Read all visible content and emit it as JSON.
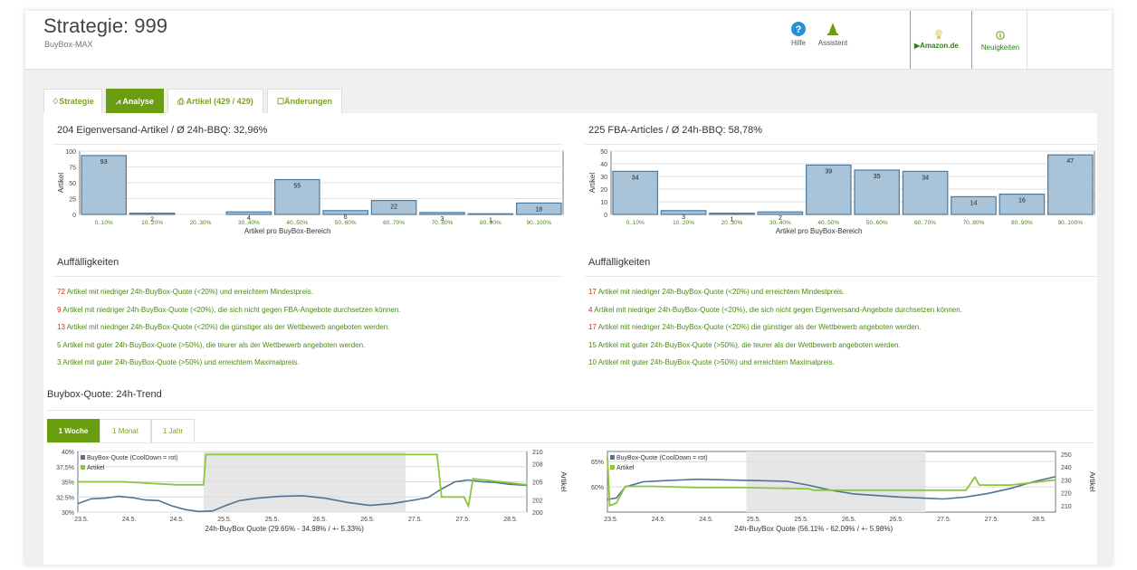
{
  "header": {
    "title": "Strategie: 999",
    "subtitle": "BuyBox-MAX",
    "help_label": "Hilfe",
    "assistant_label": "Assistent",
    "amazon_label": "Amazon.de",
    "news_label": "Neuigkeiten"
  },
  "tabs": [
    {
      "label": "Strategie",
      "active": false
    },
    {
      "label": "Analyse",
      "active": true
    },
    {
      "label": "Artikel (429 / 429)",
      "active": false
    },
    {
      "label": "Änderungen",
      "active": false
    }
  ],
  "left_panel": {
    "title": "204 Eigenversand-Artikel / Ø 24h-BBQ: 32,96%",
    "notes_title": "Auffälligkeiten",
    "notes": [
      {
        "num": "72",
        "text": " Artikel mit niedriger 24h-BuyBox-Quote (<20%) und erreichtem Mindestpreis.",
        "num_red": true
      },
      {
        "num": "9",
        "text": " Artikel mit niedriger 24h-BuyBox-Quote (<20%), die sich nicht gegen FBA-Angebote durchsetzen können.",
        "num_red": true
      },
      {
        "num": "13",
        "text": " Artikel mit niedriger 24h-BuyBox-Quote (<20%) die günstiger als der Wettbewerb angeboten werden.",
        "num_red": true
      },
      {
        "num": "5",
        "text": " Artikel mit guter 24h-BuyBox-Quote (>50%), die teurer als der Wettbewerb angeboten werden.",
        "num_red": false
      },
      {
        "num": "3",
        "text": " Artikel mit guter 24h-BuyBox-Quote (>50%) und erreichtem Maximalpreis.",
        "num_red": false
      }
    ]
  },
  "right_panel": {
    "title": "225 FBA-Articles / Ø 24h-BBQ: 58,78%",
    "notes_title": "Auffälligkeiten",
    "notes": [
      {
        "num": "17",
        "text": " Artikel mit niedriger 24h-BuyBox-Quote (<20%) und erreichtem Mindestpreis.",
        "num_red": true
      },
      {
        "num": "4",
        "text": " Artikel mit niedriger 24h-BuyBox-Quote (<20%), die sich nicht gegen Eigenversand-Angebote durchsetzen können.",
        "num_red": true
      },
      {
        "num": "17",
        "text": " Artikel mit niedriger 24h-BuyBox-Quote (<20%) die günstiger als der Wettbewerb angeboten werden.",
        "num_red": true
      },
      {
        "num": "15",
        "text": " Artikel mit guter 24h-BuyBox-Quote (>50%), die teurer als der Wettbewerb angeboten werden.",
        "num_red": false
      },
      {
        "num": "10",
        "text": " Artikel mit guter 24h-BuyBox-Quote (>50%) und erreichtem Maximalpreis.",
        "num_red": false
      }
    ]
  },
  "trend": {
    "title": "Buybox-Quote: 24h-Trend",
    "tabs": [
      {
        "label": "1 Woche",
        "active": true
      },
      {
        "label": "1 Monat",
        "active": false
      },
      {
        "label": "1 Jahr",
        "active": false
      }
    ]
  },
  "colors": {
    "accent": "#6a9e0f",
    "bar": "#a9c4d8",
    "bar_border": "#4e7a9e",
    "line_blue": "#4f7390",
    "line_green": "#8cc63f",
    "red": "#d62b1e"
  },
  "chart_data": [
    {
      "type": "bar",
      "ylabel": "Artikel",
      "xlabel": "Artikel pro BuyBox-Bereich",
      "categories": [
        "0..10%",
        "10..20%",
        "20..30%",
        "30..40%",
        "40..50%",
        "50..60%",
        "60..70%",
        "70..80%",
        "80..90%",
        "90..100%"
      ],
      "values": [
        93,
        2,
        null,
        4,
        55,
        6,
        22,
        3,
        1,
        18
      ],
      "ylim": [
        0,
        100
      ],
      "yticks": [
        0,
        25,
        50,
        75,
        100
      ]
    },
    {
      "type": "bar",
      "ylabel": "Artikel",
      "xlabel": "Artikel pro BuyBox-Bereich",
      "categories": [
        "0..10%",
        "10..20%",
        "20..30%",
        "30..40%",
        "40..50%",
        "50..60%",
        "60..70%",
        "70..80%",
        "80..90%",
        "90..100%"
      ],
      "values": [
        34,
        3,
        1,
        2,
        39,
        35,
        34,
        14,
        16,
        47
      ],
      "ylim": [
        0,
        50
      ],
      "yticks": [
        0,
        10,
        20,
        30,
        40,
        50
      ]
    },
    {
      "type": "line",
      "xlabel": "24h-BuyBox Quote (29.65% - 34.98% / +- 5.33%)",
      "ylabel_right": "Artikel",
      "x_ticks": [
        "23.5.",
        "24.5.",
        "24.5.",
        "25.5.",
        "25.5.",
        "26.5.",
        "26.5.",
        "27.5.",
        "27.5.",
        "28.5."
      ],
      "y_left_ticks": [
        "30%",
        "32.5%",
        "35%",
        "37.5%",
        "40%"
      ],
      "y_left_range": [
        30,
        40
      ],
      "y_right_ticks": [
        "200",
        "202",
        "205",
        "208",
        "210"
      ],
      "y_right_range": [
        200,
        210
      ],
      "shaded_range": [
        0.28,
        0.73
      ],
      "series": [
        {
          "name": "BuyBox-Quote (CoolDown = rot)",
          "axis": "left",
          "points": [
            [
              0,
              31.4
            ],
            [
              0.03,
              32.2
            ],
            [
              0.06,
              32.3
            ],
            [
              0.09,
              32.6
            ],
            [
              0.12,
              32.4
            ],
            [
              0.15,
              32.0
            ],
            [
              0.18,
              31.9
            ],
            [
              0.21,
              31.0
            ],
            [
              0.24,
              30.4
            ],
            [
              0.27,
              30.1
            ],
            [
              0.3,
              30.2
            ],
            [
              0.33,
              31.1
            ],
            [
              0.36,
              31.9
            ],
            [
              0.4,
              32.3
            ],
            [
              0.45,
              32.6
            ],
            [
              0.5,
              32.7
            ],
            [
              0.55,
              32.3
            ],
            [
              0.6,
              31.6
            ],
            [
              0.65,
              31.1
            ],
            [
              0.7,
              31.4
            ],
            [
              0.75,
              32.0
            ],
            [
              0.78,
              32.4
            ],
            [
              0.81,
              33.8
            ],
            [
              0.84,
              35.0
            ],
            [
              0.87,
              35.3
            ],
            [
              0.9,
              35.0
            ],
            [
              0.93,
              34.9
            ],
            [
              0.96,
              34.6
            ],
            [
              1.0,
              34.4
            ]
          ]
        },
        {
          "name": "Artikel",
          "axis": "right",
          "points": [
            [
              0,
              205
            ],
            [
              0.1,
              205
            ],
            [
              0.22,
              204.5
            ],
            [
              0.28,
              204.5
            ],
            [
              0.285,
              209.5
            ],
            [
              0.6,
              209.5
            ],
            [
              0.7,
              209.5
            ],
            [
              0.78,
              209.5
            ],
            [
              0.8,
              209.5
            ],
            [
              0.81,
              202.5
            ],
            [
              0.86,
              202.5
            ],
            [
              0.87,
              201
            ],
            [
              0.88,
              205.5
            ],
            [
              1.0,
              204.5
            ]
          ]
        }
      ]
    },
    {
      "type": "line",
      "xlabel": "24h-BuyBox Quote (56.11% - 62.09% / +- 5.98%)",
      "ylabel_right": "Artikel",
      "x_ticks": [
        "23.5.",
        "24.5.",
        "24.5.",
        "25.5.",
        "25.5.",
        "26.5.",
        "26.5.",
        "27.5.",
        "27.5.",
        "28.5."
      ],
      "y_left_ticks": [
        "60%",
        "65%"
      ],
      "y_left_range": [
        55,
        67
      ],
      "y_right_ticks": [
        "210",
        "220",
        "230",
        "240",
        "250"
      ],
      "y_right_range": [
        205,
        252
      ],
      "shaded_range": [
        0.31,
        0.71
      ],
      "series": [
        {
          "name": "BuyBox-Quote (CoolDown = rot)",
          "axis": "left",
          "points": [
            [
              0,
              57.5
            ],
            [
              0.02,
              57.8
            ],
            [
              0.04,
              60.0
            ],
            [
              0.08,
              61.0
            ],
            [
              0.12,
              61.2
            ],
            [
              0.2,
              61.5
            ],
            [
              0.3,
              61.3
            ],
            [
              0.4,
              61.1
            ],
            [
              0.45,
              60.3
            ],
            [
              0.5,
              59.3
            ],
            [
              0.55,
              58.6
            ],
            [
              0.65,
              58.0
            ],
            [
              0.7,
              57.8
            ],
            [
              0.75,
              57.6
            ],
            [
              0.8,
              58.0
            ],
            [
              0.85,
              58.7
            ],
            [
              0.9,
              59.7
            ],
            [
              0.95,
              61.0
            ],
            [
              1.0,
              62.0
            ]
          ]
        },
        {
          "name": "Artikel",
          "axis": "right",
          "points": [
            [
              0,
              248
            ],
            [
              0.005,
              210
            ],
            [
              0.02,
              212
            ],
            [
              0.04,
              225
            ],
            [
              0.1,
              225
            ],
            [
              0.2,
              224
            ],
            [
              0.3,
              224
            ],
            [
              0.45,
              223
            ],
            [
              0.46,
              222
            ],
            [
              0.6,
              222
            ],
            [
              0.8,
              222
            ],
            [
              0.82,
              232
            ],
            [
              0.83,
              226
            ],
            [
              0.9,
              226
            ],
            [
              1.0,
              230
            ]
          ]
        }
      ]
    }
  ]
}
